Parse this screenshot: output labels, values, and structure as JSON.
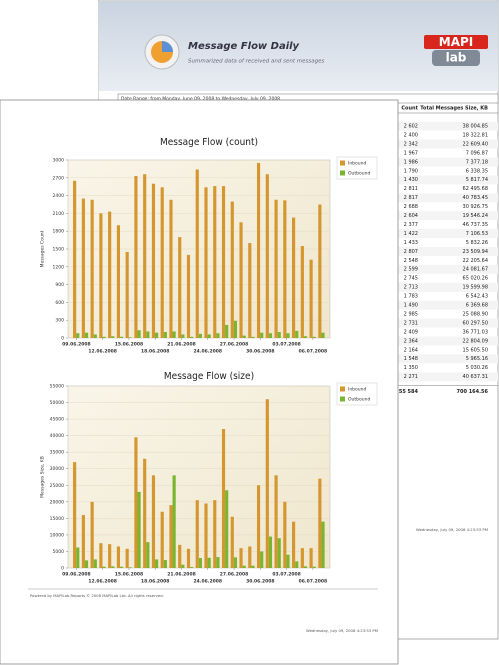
{
  "back_page": {
    "title": "Message Flow Daily",
    "subtitle": "Summarized data of received and sent messages",
    "logo_top": "MAPI",
    "logo_bottom": "lab",
    "date_range": "Date Range: from Monday, June 09, 2008 to Wednesday, July 09, 2008",
    "table": {
      "headers": [
        "Count",
        "Total Messages Size, KB"
      ],
      "rows": [
        [
          "2 602",
          "38 004.85"
        ],
        [
          "2 400",
          "18 322.81"
        ],
        [
          "2 342",
          "22 609.40"
        ],
        [
          "1 967",
          "7 096.87"
        ],
        [
          "1 986",
          "7 377.18"
        ],
        [
          "1 790",
          "6 338.35"
        ],
        [
          "1 430",
          "5 817.74"
        ],
        [
          "2 811",
          "62 495.68"
        ],
        [
          "2 817",
          "40 783.45"
        ],
        [
          "2 688",
          "30 926.75"
        ],
        [
          "2 604",
          "19 546.24"
        ],
        [
          "2 377",
          "46 737.35"
        ],
        [
          "1 422",
          "7 106.53"
        ],
        [
          "1 433",
          "5 832.26"
        ],
        [
          "2 807",
          "23 509.94"
        ],
        [
          "2 548",
          "22 205.64"
        ],
        [
          "2 599",
          "24 081.67"
        ],
        [
          "2 745",
          "65 020.26"
        ],
        [
          "2 713",
          "19 599.98"
        ],
        [
          "1 783",
          "6 542.43"
        ],
        [
          "1 490",
          "6 369.68"
        ],
        [
          "2 985",
          "25 088.90"
        ],
        [
          "2 731",
          "60 297.50"
        ],
        [
          "2 409",
          "36 771.03"
        ],
        [
          "2 364",
          "22 804.09"
        ],
        [
          "2 164",
          "15 605.50"
        ],
        [
          "1 548",
          "5 965.16"
        ],
        [
          "1 350",
          "5 030.26"
        ],
        [
          "2 271",
          "40 637.31"
        ]
      ],
      "totals": [
        "55 584",
        "700 164.56"
      ]
    },
    "footer": "Wednesday, July 09, 2008 4:23:53 PM"
  },
  "front_page": {
    "footer_left": "Powered by MAPILab Reports © 2008 MAPILab Ltd. All rights reserved.",
    "footer_right": "Wednesday, July 09, 2008 4:23:53 PM"
  },
  "chart_data": [
    {
      "type": "bar",
      "title": "Message Flow (count)",
      "y_label": "Messages Count",
      "categories": [
        "09.06.2008",
        null,
        null,
        "12.06.2008",
        null,
        null,
        "15.06.2008",
        null,
        null,
        "18.06.2008",
        null,
        null,
        "21.06.2008",
        null,
        null,
        "24.06.2008",
        null,
        null,
        "27.06.2008",
        null,
        null,
        "30.06.2008",
        null,
        null,
        "03.07.2008",
        null,
        null,
        "06.07.2008",
        null
      ],
      "series": [
        {
          "name": "Inbound",
          "color": "#d4962e",
          "values": [
            2650,
            2350,
            2330,
            2100,
            2130,
            1900,
            1450,
            2730,
            2760,
            2600,
            2540,
            2330,
            1700,
            1400,
            2840,
            2540,
            2560,
            2560,
            2300,
            1950,
            1600,
            2950,
            2760,
            2330,
            2320,
            2030,
            1550,
            1320,
            2250
          ]
        },
        {
          "name": "Outbound",
          "color": "#79b531",
          "values": [
            80,
            90,
            60,
            20,
            30,
            20,
            10,
            130,
            110,
            90,
            100,
            110,
            60,
            20,
            70,
            60,
            80,
            220,
            290,
            40,
            20,
            90,
            80,
            100,
            80,
            120,
            30,
            20,
            90
          ]
        }
      ],
      "ylim": [
        0,
        3000
      ],
      "yticks": [
        0,
        300,
        600,
        900,
        1200,
        1500,
        1800,
        2100,
        2400,
        2700,
        3000
      ],
      "grid": true,
      "legend": "right"
    },
    {
      "type": "bar",
      "title": "Message Flow (size)",
      "y_label": "Messages Size, KB",
      "categories": [
        "09.06.2008",
        null,
        null,
        "12.06.2008",
        null,
        null,
        "15.06.2008",
        null,
        null,
        "18.06.2008",
        null,
        null,
        "21.06.2008",
        null,
        null,
        "24.06.2008",
        null,
        null,
        "27.06.2008",
        null,
        null,
        "30.06.2008",
        null,
        null,
        "03.07.2008",
        null,
        null,
        "06.07.2008",
        null
      ],
      "series": [
        {
          "name": "Inbound",
          "color": "#d4962e",
          "values": [
            32000,
            16000,
            20000,
            7500,
            7200,
            6500,
            5800,
            39500,
            33000,
            28000,
            17000,
            19000,
            7000,
            5800,
            20500,
            19500,
            20500,
            42000,
            15500,
            6000,
            6500,
            25000,
            51000,
            28000,
            20000,
            14000,
            6000,
            6000,
            27000
          ]
        },
        {
          "name": "Outbound",
          "color": "#79b531",
          "values": [
            6200,
            2300,
            2600,
            400,
            500,
            400,
            200,
            23000,
            7800,
            2600,
            2400,
            28000,
            1000,
            300,
            3000,
            3100,
            3300,
            23500,
            3200,
            700,
            700,
            5000,
            9500,
            9000,
            4000,
            2000,
            500,
            400,
            14000
          ]
        }
      ],
      "ylim": [
        0,
        55000
      ],
      "yticks": [
        0,
        5000,
        10000,
        15000,
        20000,
        25000,
        30000,
        35000,
        40000,
        45000,
        50000,
        55000
      ],
      "grid": true,
      "legend": "right"
    }
  ]
}
